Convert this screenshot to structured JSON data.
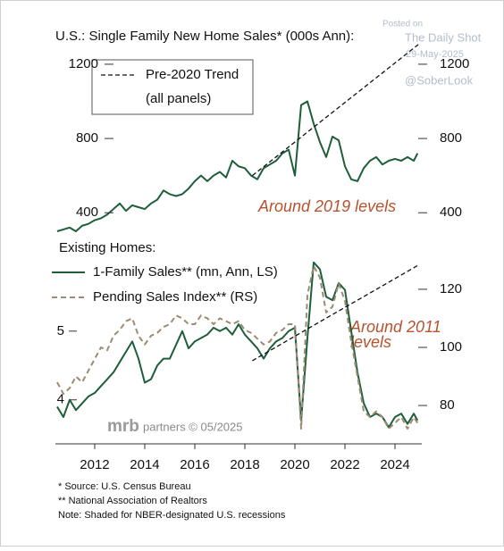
{
  "chart_data": [
    {
      "type": "line",
      "title": "U.S.: Single Family New Home Sales* (000s Ann):",
      "xlim": [
        2010.43,
        2025.07
      ],
      "ylim": [
        300,
        1320
      ],
      "yticks": [
        400,
        800,
        1200
      ],
      "y2lim": [
        300,
        1320
      ],
      "y2ticks": [
        400,
        800,
        1200
      ],
      "legend_note": "(all panels)",
      "annotations": [
        "Around 2019 levels"
      ],
      "series": [
        {
          "color": "#1e5e3b",
          "dash": false,
          "x": [
            2010.5,
            2010.75,
            2011,
            2011.25,
            2011.5,
            2011.75,
            2012,
            2012.25,
            2012.5,
            2012.75,
            2013,
            2013.25,
            2013.5,
            2013.75,
            2014,
            2014.25,
            2014.5,
            2014.75,
            2015,
            2015.25,
            2015.5,
            2015.75,
            2016,
            2016.25,
            2016.5,
            2016.75,
            2017,
            2017.25,
            2017.5,
            2017.75,
            2018,
            2018.25,
            2018.5,
            2018.75,
            2019,
            2019.25,
            2019.5,
            2019.75,
            2020,
            2020.25,
            2020.5,
            2020.75,
            2021,
            2021.25,
            2021.5,
            2021.75,
            2022,
            2022.25,
            2022.5,
            2022.75,
            2023,
            2023.25,
            2023.5,
            2023.75,
            2024,
            2024.25,
            2024.5,
            2024.75,
            2024.9
          ],
          "values": [
            300,
            310,
            320,
            300,
            330,
            340,
            360,
            370,
            390,
            420,
            450,
            410,
            440,
            430,
            420,
            450,
            470,
            520,
            500,
            490,
            500,
            530,
            570,
            600,
            570,
            600,
            620,
            590,
            680,
            650,
            640,
            600,
            580,
            640,
            660,
            680,
            720,
            740,
            600,
            980,
            1000,
            880,
            780,
            700,
            810,
            790,
            650,
            580,
            570,
            640,
            680,
            700,
            660,
            680,
            690,
            680,
            700,
            680,
            720
          ]
        },
        {
          "name": "Pre-2020 Trend",
          "color": "#111111",
          "dash": true,
          "x": [
            2018.3,
            2024.93
          ],
          "values": [
            600,
            1306
          ]
        }
      ]
    },
    {
      "type": "line",
      "title": "Existing Homes:",
      "xlim": [
        2010.43,
        2025.07
      ],
      "xticks": [
        2012,
        2014,
        2016,
        2018,
        2020,
        2022,
        2024
      ],
      "ylim": [
        3.36,
        6.18
      ],
      "yticks": [
        4,
        5
      ],
      "y2lim": [
        66.8,
        133.5
      ],
      "y2ticks": [
        80,
        100,
        120
      ],
      "annotations": [
        [
          "Around 2011",
          "levels"
        ]
      ],
      "series": [
        {
          "name": "1-Family Sales** (mn, Ann, LS)",
          "color": "#1e5e3b",
          "dash": false,
          "x": [
            2010.5,
            2010.75,
            2011,
            2011.25,
            2011.5,
            2011.75,
            2012,
            2012.25,
            2012.5,
            2012.75,
            2013,
            2013.25,
            2013.5,
            2013.75,
            2014,
            2014.25,
            2014.5,
            2014.75,
            2015,
            2015.25,
            2015.5,
            2015.75,
            2016,
            2016.25,
            2016.5,
            2016.75,
            2017,
            2017.25,
            2017.5,
            2017.75,
            2018,
            2018.25,
            2018.5,
            2018.75,
            2019,
            2019.25,
            2019.5,
            2019.75,
            2020,
            2020.25,
            2020.5,
            2020.75,
            2021,
            2021.25,
            2021.5,
            2021.75,
            2022,
            2022.25,
            2022.5,
            2022.75,
            2023,
            2023.25,
            2023.5,
            2023.75,
            2024,
            2024.25,
            2024.5,
            2024.75,
            2024.9
          ],
          "values": [
            3.9,
            3.75,
            4.0,
            3.85,
            3.95,
            4.05,
            4.1,
            4.2,
            4.3,
            4.4,
            4.55,
            4.7,
            4.85,
            4.6,
            4.25,
            4.3,
            4.5,
            4.6,
            4.6,
            4.8,
            5.0,
            4.75,
            4.85,
            4.9,
            4.95,
            5.05,
            5.0,
            5.05,
            4.95,
            5.1,
            4.95,
            4.85,
            4.75,
            4.6,
            4.75,
            4.85,
            4.9,
            5.0,
            5.05,
            3.7,
            4.9,
            6.0,
            5.9,
            5.5,
            5.45,
            5.7,
            5.6,
            5.0,
            4.4,
            3.95,
            3.75,
            3.8,
            3.75,
            3.6,
            3.75,
            3.8,
            3.65,
            3.8,
            3.7
          ]
        },
        {
          "name": "Pending Sales Index** (RS)",
          "color": "#9c8b72",
          "dash": true,
          "axis": "y2",
          "x": [
            2010.5,
            2010.75,
            2011,
            2011.25,
            2011.5,
            2011.75,
            2012,
            2012.25,
            2012.5,
            2012.75,
            2013,
            2013.25,
            2013.5,
            2013.75,
            2014,
            2014.25,
            2014.5,
            2014.75,
            2015,
            2015.25,
            2015.5,
            2015.75,
            2016,
            2016.25,
            2016.5,
            2016.75,
            2017,
            2017.25,
            2017.5,
            2017.75,
            2018,
            2018.25,
            2018.5,
            2018.75,
            2019,
            2019.25,
            2019.5,
            2019.75,
            2020,
            2020.25,
            2020.5,
            2020.75,
            2021,
            2021.25,
            2021.5,
            2021.75,
            2022,
            2022.25,
            2022.5,
            2022.75,
            2023,
            2023.25,
            2023.5,
            2023.75,
            2024,
            2024.25,
            2024.5,
            2024.75,
            2024.9
          ],
          "values": [
            88,
            84,
            86,
            90,
            88,
            92,
            96,
            100,
            99,
            104,
            106,
            109,
            110,
            104,
            101,
            104,
            105,
            107,
            108,
            111,
            110,
            108,
            108,
            111,
            110,
            108,
            110,
            109,
            108,
            109,
            106,
            105,
            103,
            101,
            102,
            105,
            106,
            108,
            108,
            72,
            118,
            128,
            124,
            112,
            114,
            122,
            116,
            102,
            90,
            78,
            76,
            78,
            76,
            72,
            74,
            76,
            72,
            76,
            74
          ]
        },
        {
          "color": "#111111",
          "dash": true,
          "x": [
            2018.3,
            2024.93
          ],
          "values": [
            4.57,
            5.96
          ]
        }
      ]
    }
  ],
  "watermark": [
    "Posted on",
    "The Daily Shot",
    "29-May-2025",
    "@SoberLook"
  ],
  "source_logo": [
    "mrb",
    "partners © 05/2025"
  ],
  "footnotes": [
    "*  Source: U.S. Census Bureau",
    "** National Association of Realtors",
    "Note: Shaded for NBER-designated U.S. recessions"
  ]
}
